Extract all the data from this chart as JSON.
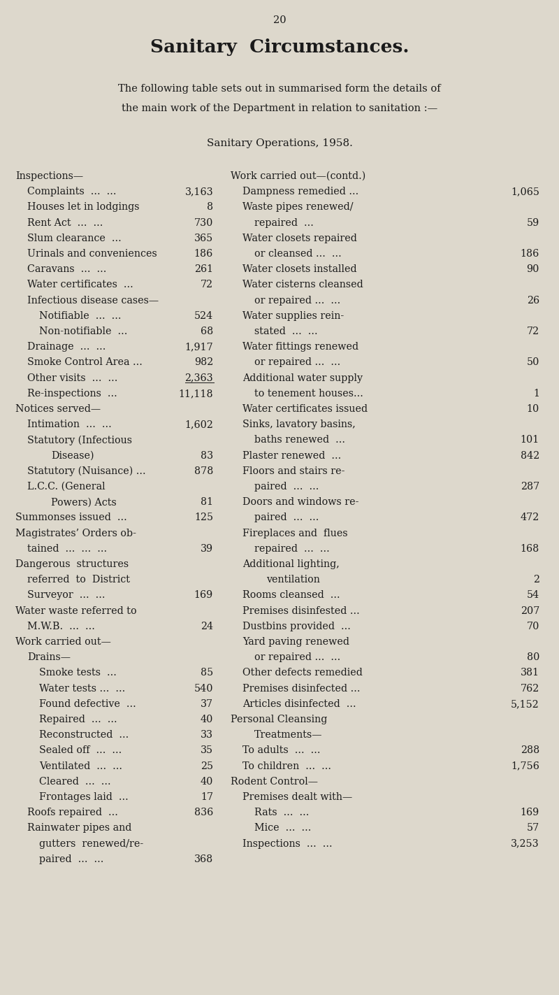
{
  "page_number": "20",
  "title": "Sanitary  Circumstances.",
  "intro_line1": "The following table sets out in summarised form the details of",
  "intro_line2": "the main work of the Department in relation to sanitation :—",
  "table_title_part1": "S",
  "table_title_part2": "anitary ",
  "table_title_part3": "O",
  "table_title_part4": "perations",
  "table_title_part5": ", 1958.",
  "background_color": "#ddd8cc",
  "text_color": "#1a1a1a",
  "left_column": [
    {
      "text": "Inspections—",
      "indent": 0,
      "value": null,
      "section_header": true
    },
    {
      "text": "Complaints  ...  ...",
      "indent": 1,
      "value": "3,163"
    },
    {
      "text": "Houses let in lodgings",
      "indent": 1,
      "value": "8"
    },
    {
      "text": "Rent Act  ...  ...",
      "indent": 1,
      "value": "730"
    },
    {
      "text": "Slum clearance  ...",
      "indent": 1,
      "value": "365"
    },
    {
      "text": "Urinals and conveniences",
      "indent": 1,
      "value": "186"
    },
    {
      "text": "Caravans  ...  ...",
      "indent": 1,
      "value": "261"
    },
    {
      "text": "Water certificates  ...",
      "indent": 1,
      "value": "72"
    },
    {
      "text": "Infectious disease cases—",
      "indent": 1,
      "value": null
    },
    {
      "text": "Notifiable  ...  ...",
      "indent": 2,
      "value": "524"
    },
    {
      "text": "Non-notifiable  ...",
      "indent": 2,
      "value": "68"
    },
    {
      "text": "Drainage  ...  ...",
      "indent": 1,
      "value": "1,917"
    },
    {
      "text": "Smoke Control Area ...",
      "indent": 1,
      "value": "982"
    },
    {
      "text": "Other visits  ...  ...",
      "indent": 1,
      "value": "2,363"
    },
    {
      "text": "Re-inspections  ...",
      "indent": 1,
      "value": "11,118",
      "overline": true
    },
    {
      "text": "Notices served—",
      "indent": 0,
      "value": null,
      "section_header": true
    },
    {
      "text": "Intimation  ...  ...",
      "indent": 1,
      "value": "1,602"
    },
    {
      "text": "Statutory (Infectious",
      "indent": 1,
      "value": null
    },
    {
      "text": "Disease)",
      "indent": 3,
      "value": "83"
    },
    {
      "text": "Statutory (Nuisance) ...",
      "indent": 1,
      "value": "878"
    },
    {
      "text": "L.C.C. (General",
      "indent": 1,
      "value": null
    },
    {
      "text": "Powers) Acts",
      "indent": 3,
      "value": "81"
    },
    {
      "text": "Summonses issued  ...",
      "indent": 0,
      "value": "125"
    },
    {
      "text": "Magistrates’ Orders ob-",
      "indent": 0,
      "value": null
    },
    {
      "text": "tained  ...  ...  ...",
      "indent": 1,
      "value": "39"
    },
    {
      "text": "Dangerous  structures",
      "indent": 0,
      "value": null
    },
    {
      "text": "referred  to  District",
      "indent": 1,
      "value": null
    },
    {
      "text": "Surveyor  ...  ...",
      "indent": 1,
      "value": "169"
    },
    {
      "text": "Water waste referred to",
      "indent": 0,
      "value": null
    },
    {
      "text": "M.W.B.  ...  ...",
      "indent": 1,
      "value": "24"
    },
    {
      "text": "Work carried out—",
      "indent": 0,
      "value": null,
      "section_header": true
    },
    {
      "text": "Drains—",
      "indent": 1,
      "value": null
    },
    {
      "text": "Smoke tests  ...",
      "indent": 2,
      "value": "85"
    },
    {
      "text": "Water tests ...  ...",
      "indent": 2,
      "value": "540"
    },
    {
      "text": "Found defective  ...",
      "indent": 2,
      "value": "37"
    },
    {
      "text": "Repaired  ...  ...",
      "indent": 2,
      "value": "40"
    },
    {
      "text": "Reconstructed  ...",
      "indent": 2,
      "value": "33"
    },
    {
      "text": "Sealed off  ...  ...",
      "indent": 2,
      "value": "35"
    },
    {
      "text": "Ventilated  ...  ...",
      "indent": 2,
      "value": "25"
    },
    {
      "text": "Cleared  ...  ...",
      "indent": 2,
      "value": "40"
    },
    {
      "text": "Frontages laid  ...",
      "indent": 2,
      "value": "17"
    },
    {
      "text": "Roofs repaired  ...",
      "indent": 1,
      "value": "836"
    },
    {
      "text": "Rainwater pipes and",
      "indent": 1,
      "value": null
    },
    {
      "text": "gutters  renewed/re-",
      "indent": 2,
      "value": null
    },
    {
      "text": "paired  ...  ...",
      "indent": 2,
      "value": "368"
    }
  ],
  "right_column": [
    {
      "text": "Work carried out—(contd.)",
      "indent": 0,
      "value": null,
      "section_header": true
    },
    {
      "text": "Dampness remedied ...",
      "indent": 1,
      "value": "1,065"
    },
    {
      "text": "Waste pipes renewed/",
      "indent": 1,
      "value": null
    },
    {
      "text": "repaired  ...",
      "indent": 2,
      "value": "59"
    },
    {
      "text": "Water closets repaired",
      "indent": 1,
      "value": null
    },
    {
      "text": "or cleansed ...  ...",
      "indent": 2,
      "value": "186"
    },
    {
      "text": "Water closets installed",
      "indent": 1,
      "value": "90"
    },
    {
      "text": "Water cisterns cleansed",
      "indent": 1,
      "value": null
    },
    {
      "text": "or repaired ...  ...",
      "indent": 2,
      "value": "26"
    },
    {
      "text": "Water supplies rein-",
      "indent": 1,
      "value": null
    },
    {
      "text": "stated  ...  ...",
      "indent": 2,
      "value": "72"
    },
    {
      "text": "Water fittings renewed",
      "indent": 1,
      "value": null
    },
    {
      "text": "or repaired ...  ...",
      "indent": 2,
      "value": "50"
    },
    {
      "text": "Additional water supply",
      "indent": 1,
      "value": null
    },
    {
      "text": "to tenement houses...",
      "indent": 2,
      "value": "1"
    },
    {
      "text": "Water certificates issued",
      "indent": 1,
      "value": "10"
    },
    {
      "text": "Sinks, lavatory basins,",
      "indent": 1,
      "value": null
    },
    {
      "text": "baths renewed  ...",
      "indent": 2,
      "value": "101"
    },
    {
      "text": "Plaster renewed  ...",
      "indent": 1,
      "value": "842"
    },
    {
      "text": "Floors and stairs re-",
      "indent": 1,
      "value": null
    },
    {
      "text": "paired  ...  ...",
      "indent": 2,
      "value": "287"
    },
    {
      "text": "Doors and windows re-",
      "indent": 1,
      "value": null
    },
    {
      "text": "paired  ...  ...",
      "indent": 2,
      "value": "472"
    },
    {
      "text": "Fireplaces and  flues",
      "indent": 1,
      "value": null
    },
    {
      "text": "repaired  ...  ...",
      "indent": 2,
      "value": "168"
    },
    {
      "text": "Additional lighting,",
      "indent": 1,
      "value": null
    },
    {
      "text": "ventilation",
      "indent": 3,
      "value": "2"
    },
    {
      "text": "Rooms cleansed  ...",
      "indent": 1,
      "value": "54"
    },
    {
      "text": "Premises disinfested ...",
      "indent": 1,
      "value": "207"
    },
    {
      "text": "Dustbins provided  ...",
      "indent": 1,
      "value": "70"
    },
    {
      "text": "Yard paving renewed",
      "indent": 1,
      "value": null
    },
    {
      "text": "or repaired ...  ...",
      "indent": 2,
      "value": "80"
    },
    {
      "text": "Other defects remedied",
      "indent": 1,
      "value": "381"
    },
    {
      "text": "Premises disinfected ...",
      "indent": 1,
      "value": "762"
    },
    {
      "text": "Articles disinfected  ...",
      "indent": 1,
      "value": "5,152"
    },
    {
      "text": "Personal Cleansing",
      "indent": 0,
      "value": null,
      "section_header": true
    },
    {
      "text": "Treatments—",
      "indent": 2,
      "value": null
    },
    {
      "text": "To adults  ...  ...",
      "indent": 1,
      "value": "288"
    },
    {
      "text": "To children  ...  ...",
      "indent": 1,
      "value": "1,756"
    },
    {
      "text": "Rodent Control—",
      "indent": 0,
      "value": null,
      "section_header": true
    },
    {
      "text": "Premises dealt with—",
      "indent": 1,
      "value": null
    },
    {
      "text": "Rats  ...  ...",
      "indent": 2,
      "value": "169"
    },
    {
      "text": "Mice  ...  ...",
      "indent": 2,
      "value": "57"
    },
    {
      "text": "Inspections  ...  ...",
      "indent": 1,
      "value": "3,253"
    }
  ]
}
